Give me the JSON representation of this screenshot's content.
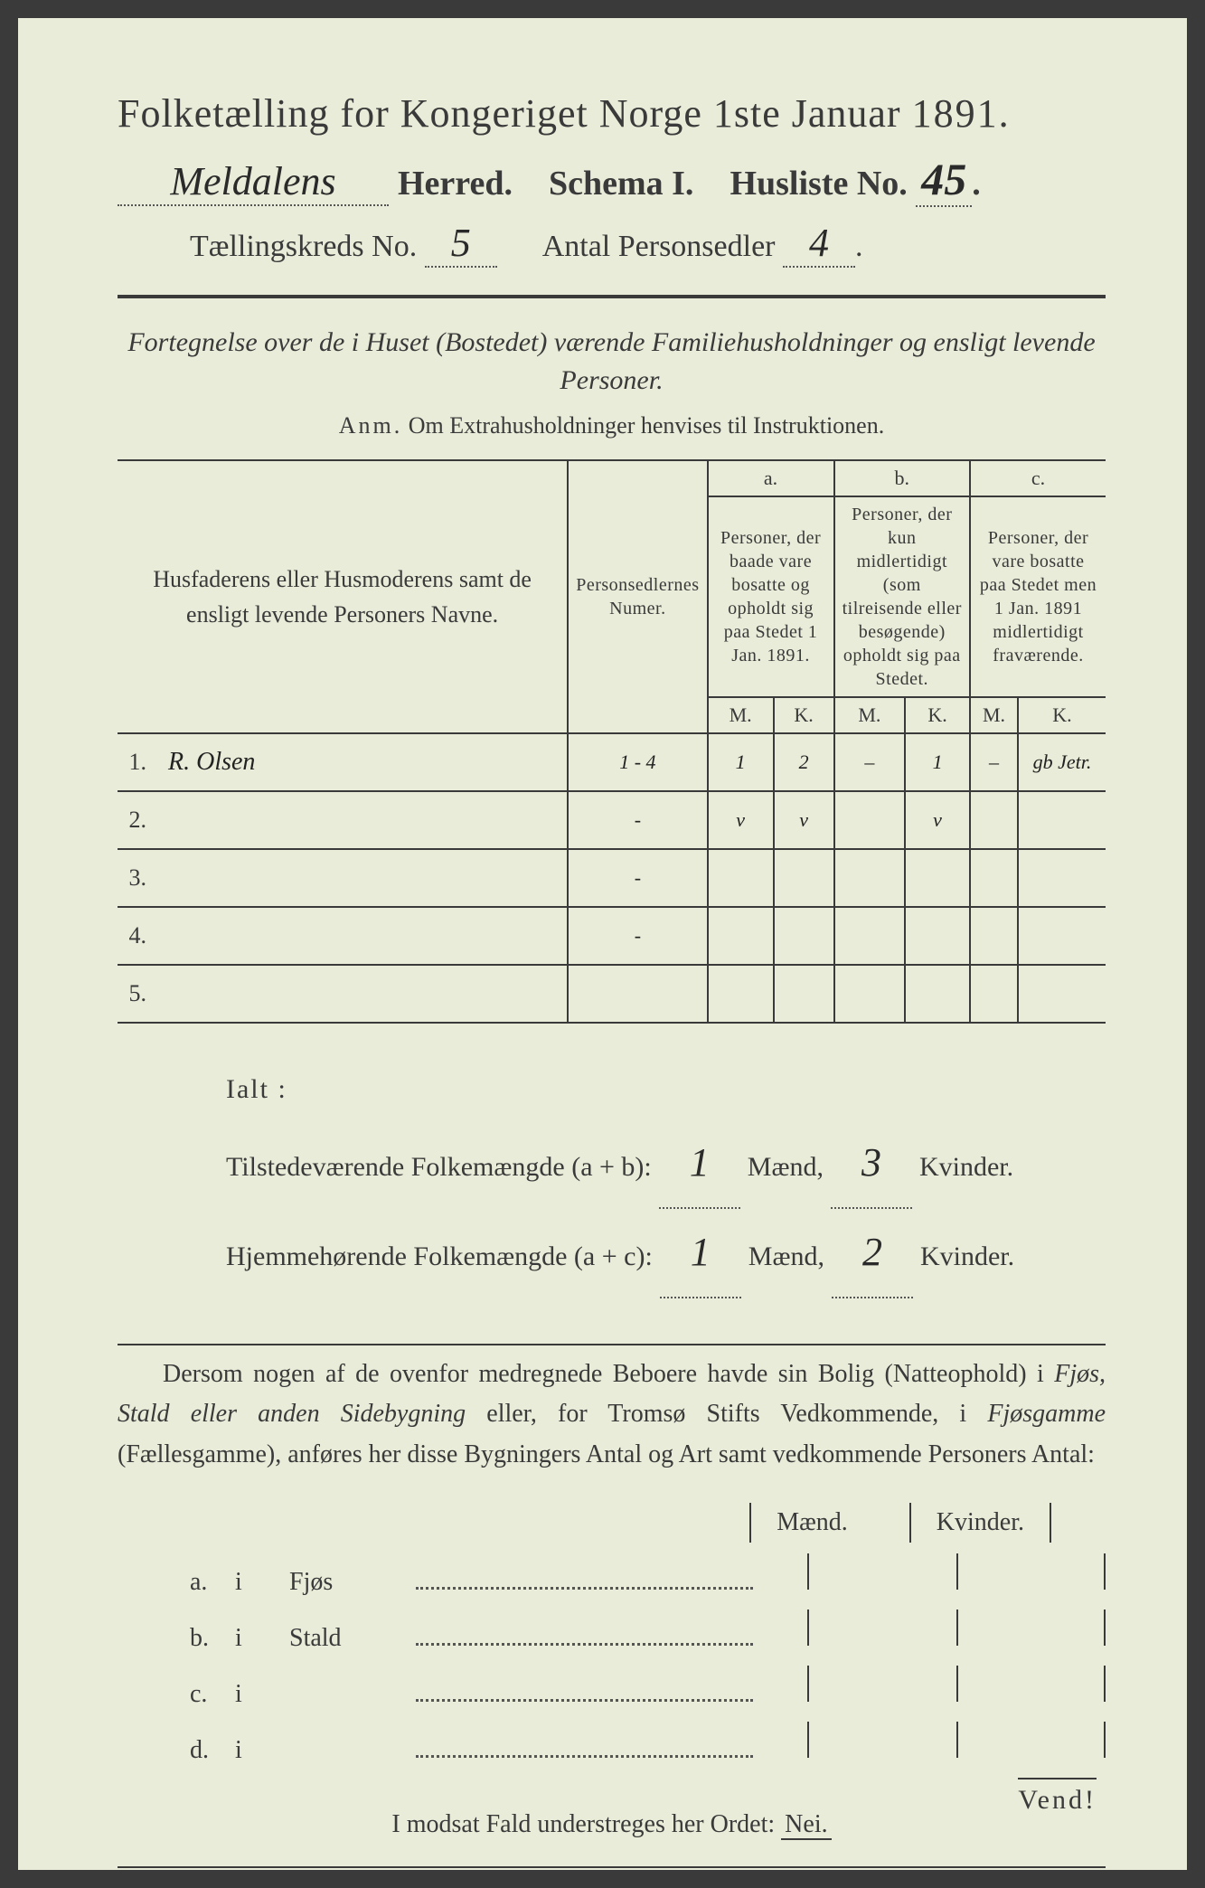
{
  "colors": {
    "paper": "#e8ecd8",
    "ink": "#3a3a3a",
    "handwriting": "#2a2a2a",
    "background": "#3a3a3a"
  },
  "header": {
    "title_prefix": "Folketælling for Kongeriget Norge 1ste Januar",
    "year": "1891",
    "herred_value": "Meldalens",
    "herred_label": "Herred.",
    "schema_label": "Schema I.",
    "husliste_label": "Husliste No.",
    "husliste_value": "45",
    "kreds_label": "Tællingskreds No.",
    "kreds_value": "5",
    "antal_label": "Antal Personsedler",
    "antal_value": "4"
  },
  "subtitle": {
    "line": "Fortegnelse over de i Huset (Bostedet) værende Familiehusholdninger og ensligt levende Personer.",
    "anm_label": "Anm.",
    "anm_text": "Om Extrahusholdninger henvises til Instruktionen."
  },
  "table": {
    "columns": {
      "name": "Husfaderens eller Husmoderens samt de ensligt levende Personers Navne.",
      "numer": "Personsedlernes Numer.",
      "a_label": "a.",
      "a_text": "Personer, der baade vare bosatte og opholdt sig paa Stedet 1 Jan. 1891.",
      "b_label": "b.",
      "b_text": "Personer, der kun midlertidigt (som tilreisende eller besøgende) opholdt sig paa Stedet.",
      "c_label": "c.",
      "c_text": "Personer, der vare bosatte paa Stedet men 1 Jan. 1891 midlertidigt fraværende.",
      "m": "M.",
      "k": "K."
    },
    "rows": [
      {
        "n": "1.",
        "name": "R. Olsen",
        "numer": "1 - 4",
        "a_m": "1",
        "a_k": "2",
        "b_m": "–",
        "b_k": "1",
        "c_m": "–",
        "c_k": "gb Jetr."
      },
      {
        "n": "2.",
        "name": "",
        "numer": "-",
        "a_m": "v",
        "a_k": "v",
        "b_m": "",
        "b_k": "v",
        "c_m": "",
        "c_k": ""
      },
      {
        "n": "3.",
        "name": "",
        "numer": "-",
        "a_m": "",
        "a_k": "",
        "b_m": "",
        "b_k": "",
        "c_m": "",
        "c_k": ""
      },
      {
        "n": "4.",
        "name": "",
        "numer": "-",
        "a_m": "",
        "a_k": "",
        "b_m": "",
        "b_k": "",
        "c_m": "",
        "c_k": ""
      },
      {
        "n": "5.",
        "name": "",
        "numer": "",
        "a_m": "",
        "a_k": "",
        "b_m": "",
        "b_k": "",
        "c_m": "",
        "c_k": ""
      }
    ]
  },
  "totals": {
    "ialt_label": "Ialt :",
    "line1_label": "Tilstedeværende Folkemængde (a + b):",
    "line1_m": "1",
    "line1_k": "3",
    "line2_label": "Hjemmehørende Folkemængde (a + c):",
    "line2_m": "1",
    "line2_k": "2",
    "maend": "Mænd,",
    "kvinder": "Kvinder."
  },
  "paragraph": {
    "text1": "Dersom nogen af de ovenfor medregnede Beboere havde sin Bolig (Natteophold) i ",
    "it1": "Fjøs, Stald eller anden Sidebygning",
    "text2": " eller, for Tromsø Stifts Vedkommende, i ",
    "it2": "Fjøsgamme",
    "text3": " (Fællesgamme), anføres her disse Bygningers Antal og Art samt vedkommende Personers Antal:"
  },
  "buildings": {
    "header_m": "Mænd.",
    "header_k": "Kvinder.",
    "rows": [
      {
        "letter": "a.",
        "i": "i",
        "type": "Fjøs"
      },
      {
        "letter": "b.",
        "i": "i",
        "type": "Stald"
      },
      {
        "letter": "c.",
        "i": "i",
        "type": ""
      },
      {
        "letter": "d.",
        "i": "i",
        "type": ""
      }
    ]
  },
  "footer": {
    "nei_line_prefix": "I modsat Fald understreges her Ordet: ",
    "nei": "Nei.",
    "vend": "Vend!"
  }
}
